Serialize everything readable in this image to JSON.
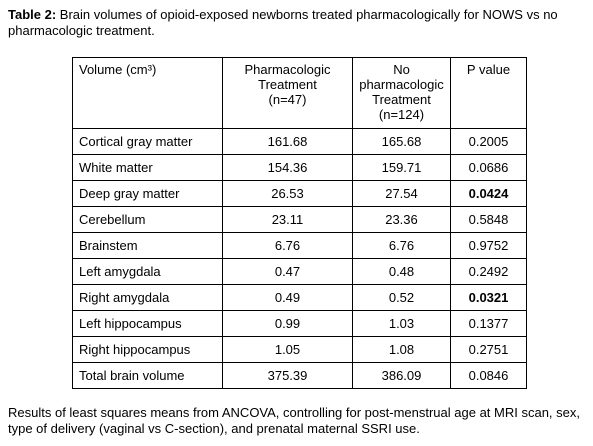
{
  "title": {
    "label": "Table 2:",
    "text": "Brain volumes of opioid-exposed newborns treated pharmacologically for NOWS vs no pharmacologic treatment."
  },
  "table": {
    "header": [
      [
        "Volume (cm³)"
      ],
      [
        "Pharmacologic",
        "Treatment",
        "(n=47)"
      ],
      [
        "No",
        "pharmacologic",
        "Treatment",
        "(n=124)"
      ],
      [
        "P value"
      ]
    ],
    "rows": [
      [
        "Cortical gray matter",
        "161.68",
        "165.68",
        "0.2005"
      ],
      [
        "White matter",
        "154.36",
        "159.71",
        "0.0686"
      ],
      [
        "Deep gray matter",
        "26.53",
        "27.54",
        "0.0424"
      ],
      [
        "Cerebellum",
        "23.11",
        "23.36",
        "0.5848"
      ],
      [
        "Brainstem",
        "6.76",
        "6.76",
        "0.9752"
      ],
      [
        "Left amygdala",
        "0.47",
        "0.48",
        "0.2492"
      ],
      [
        "Right amygdala",
        "0.49",
        "0.52",
        "0.0321"
      ],
      [
        "Left hippocampus",
        "0.99",
        "1.03",
        "0.1377"
      ],
      [
        "Right hippocampus",
        "1.05",
        "1.08",
        "0.2751"
      ],
      [
        "Total brain volume",
        "375.39",
        "386.09",
        "0.0846"
      ]
    ]
  },
  "footnote": "Results of least squares means from ANCOVA, controlling for post-menstrual age at MRI scan, sex, type of delivery (vaginal vs C-section), and prenatal maternal SSRI use."
}
